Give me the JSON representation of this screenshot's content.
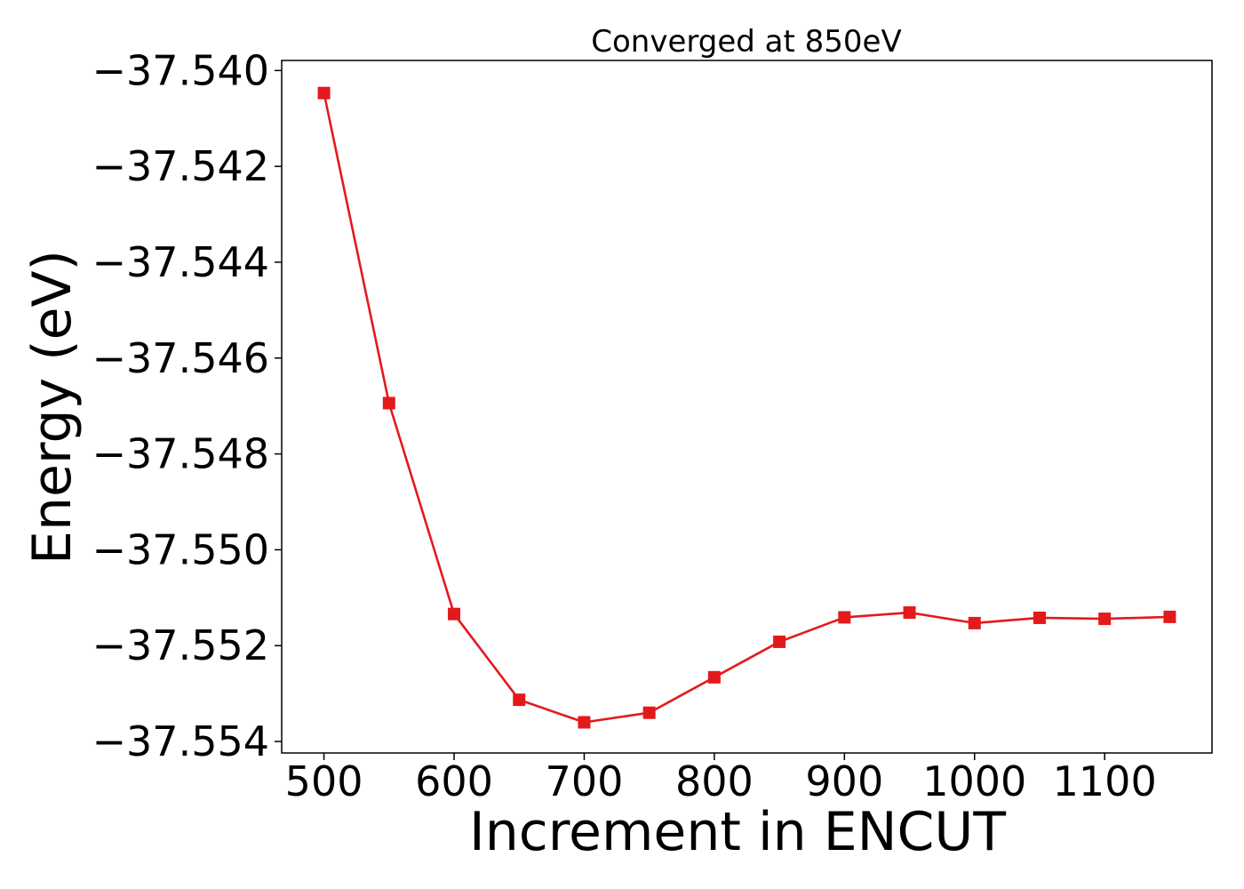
{
  "chart_data": {
    "type": "line",
    "title": "Converged at 850eV",
    "xlabel": "Increment in ENCUT",
    "ylabel": "Energy (eV)",
    "x": [
      500,
      550,
      600,
      650,
      700,
      750,
      800,
      850,
      900,
      950,
      1000,
      1050,
      1100,
      1150
    ],
    "series": [
      {
        "values": [
          -37.54047,
          -37.54694,
          -37.55134,
          -37.55313,
          -37.5536,
          -37.5534,
          -37.55266,
          -37.55192,
          -37.55141,
          -37.55131,
          -37.55153,
          -37.55142,
          -37.55144,
          -37.5514
        ]
      }
    ],
    "xlim": [
      467.5,
      1182.5
    ],
    "ylim": [
      -37.55424,
      -37.53979
    ],
    "xticks": [
      500,
      600,
      700,
      800,
      900,
      1000,
      1100
    ],
    "xtick_labels": [
      "500",
      "600",
      "700",
      "800",
      "900",
      "1000",
      "1100"
    ],
    "yticks": [
      -37.54,
      -37.542,
      -37.544,
      -37.546,
      -37.548,
      -37.55,
      -37.552,
      -37.554
    ],
    "ytick_labels": [
      "−37.540",
      "−37.542",
      "−37.544",
      "−37.546",
      "−37.548",
      "−37.550",
      "−37.552",
      "−37.554"
    ],
    "grid": false,
    "legend": "none",
    "marker": "square",
    "colors": {
      "line": "#e31a1c",
      "axes": "#000000",
      "background": "#ffffff"
    }
  }
}
